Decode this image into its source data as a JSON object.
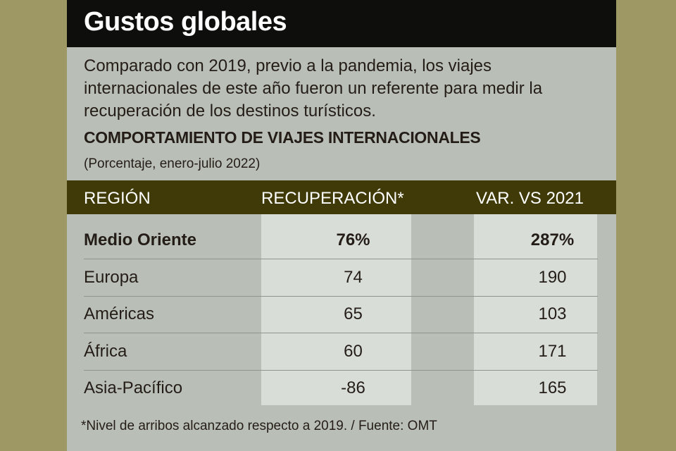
{
  "title": "Gustos globales",
  "intro": "Comparado con 2019, previo a la pandemia, los viajes internacionales de este año fueron un referente para medir la recuperación de los destinos turísticos.",
  "colors": {
    "background": "#9e9865",
    "panel": "#b9beb6",
    "title_bar": "#0e0e0c",
    "header_band": "#3f3a08",
    "column_highlight": "#d9ddd8"
  },
  "chart_data": {
    "type": "table",
    "title": "COMPORTAMIENTO DE VIAJES INTERNACIONALES",
    "subtitle": "(Porcentaje, enero-julio 2022)",
    "columns": [
      "REGIÓN",
      "RECUPERACIÓN*",
      "VAR. VS 2021"
    ],
    "rows": [
      {
        "region": "Medio Oriente",
        "recuperacion": "76%",
        "var": "287%",
        "highlight": true
      },
      {
        "region": "Europa",
        "recuperacion": "74",
        "var": "190"
      },
      {
        "region": "Américas",
        "recuperacion": "65",
        "var": "103"
      },
      {
        "region": "África",
        "recuperacion": "60",
        "var": "171"
      },
      {
        "region": "Asia-Pacífico",
        "recuperacion": "-86",
        "var": "165"
      }
    ]
  },
  "footnote": "*Nivel de arribos alcanzado respecto a 2019. / Fuente: OMT"
}
